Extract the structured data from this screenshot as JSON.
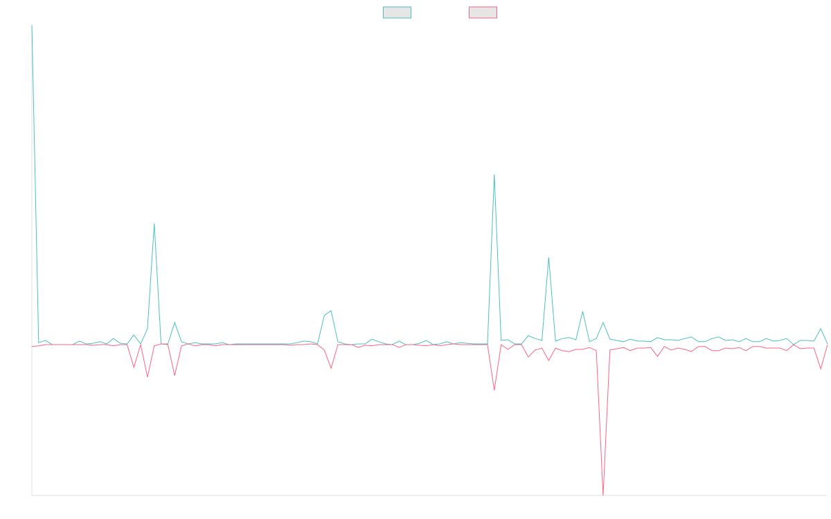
{
  "chart_data": {
    "type": "line",
    "categories": [
      null,
      null,
      null,
      null,
      null,
      null,
      null,
      null,
      null,
      null,
      null,
      null,
      null,
      null,
      null,
      null,
      null,
      null,
      null,
      null,
      null,
      null,
      null,
      null,
      null,
      null,
      null,
      null,
      null,
      null,
      null,
      null,
      null,
      null,
      null,
      null,
      null,
      null,
      null,
      null,
      null,
      null,
      null,
      null,
      null,
      null,
      null,
      null,
      null,
      null,
      null,
      null,
      null,
      null,
      null,
      null,
      null,
      null,
      null,
      null,
      null,
      null,
      null,
      null,
      null,
      null,
      null,
      null,
      null,
      null,
      null,
      null,
      null,
      null,
      null,
      null,
      null,
      null,
      null,
      null,
      null,
      null,
      null,
      null,
      null,
      null,
      null,
      null,
      null,
      null,
      null,
      null,
      null,
      null,
      null,
      null,
      null,
      null,
      null,
      null,
      null,
      null,
      null,
      null,
      null,
      null,
      null,
      null,
      null,
      null,
      null,
      null,
      null,
      null,
      null,
      null,
      null,
      null
    ],
    "series": [
      {
        "color": "#4bc0c0",
        "values": [
          100,
          0.6,
          1.3,
          0,
          0,
          0,
          0,
          1.1,
          0.2,
          0.4,
          0.9,
          0.2,
          1.9,
          0.4,
          0.2,
          3.0,
          0.2,
          5.0,
          37.9,
          0.2,
          0.2,
          6.9,
          0.9,
          0.2,
          0.6,
          0.2,
          0.2,
          0.2,
          0.6,
          0,
          0.2,
          0.2,
          0.2,
          0.2,
          0.2,
          0.2,
          0.2,
          0.2,
          0.2,
          0.6,
          1.1,
          0.9,
          0.2,
          9.1,
          10.6,
          0.9,
          0.2,
          0,
          0.2,
          0.2,
          1.7,
          0.9,
          0.2,
          0,
          1.1,
          0,
          0,
          0.4,
          1.3,
          0,
          0.2,
          0.9,
          0.2,
          0.6,
          0.4,
          0.2,
          0.2,
          0.2,
          53.2,
          1.3,
          1.5,
          0.2,
          0.2,
          2.8,
          1.9,
          1.3,
          27.3,
          1.1,
          1.9,
          2.2,
          1.5,
          10.4,
          0.9,
          1.9,
          6.9,
          1.7,
          1.3,
          0.9,
          1.7,
          1.1,
          1.1,
          0.9,
          2.2,
          1.5,
          1.5,
          1.3,
          1.9,
          2.4,
          0.9,
          0.9,
          1.9,
          2.4,
          1.3,
          1.5,
          0.9,
          1.9,
          0.9,
          0.9,
          1.9,
          1.1,
          1.3,
          1.9,
          0,
          1.3,
          1.3,
          1.1,
          5.0,
          0.2
        ]
      },
      {
        "color": "#ff6384",
        "values": [
          -0.6,
          -0.4,
          0,
          0,
          0,
          0,
          0,
          0,
          0,
          -0.2,
          0,
          0,
          -0.4,
          0,
          0,
          -7.1,
          0,
          -10.2,
          -0.4,
          0.2,
          0,
          -9.7,
          -0.4,
          0.2,
          -0.4,
          0,
          0,
          -0.4,
          0,
          0,
          0,
          0,
          0,
          0,
          0,
          0,
          0,
          0,
          -0.2,
          0,
          0,
          0.2,
          0,
          -1.7,
          -7.4,
          0,
          0,
          0,
          -0.9,
          -0.2,
          -0.4,
          0,
          0,
          0,
          -0.9,
          0,
          0,
          -0.2,
          -0.4,
          0,
          -0.4,
          0,
          0.2,
          0,
          0,
          0,
          0,
          0,
          -14.3,
          0,
          -1.5,
          0,
          0,
          -3.9,
          -1.7,
          -1.1,
          -5.0,
          -1.1,
          -1.9,
          -2.2,
          -1.5,
          -1.5,
          -0.9,
          -1.9,
          -47.2,
          -1.7,
          -1.3,
          -0.9,
          -1.9,
          -1.1,
          -1.1,
          -0.9,
          -3.7,
          -0.6,
          -1.7,
          -1.1,
          -1.5,
          -2.2,
          -0.6,
          -0.6,
          -1.9,
          -1.9,
          -1.1,
          -1.3,
          -0.9,
          -1.9,
          -0.6,
          -0.6,
          -1.1,
          -1.1,
          -1.1,
          -1.9,
          0,
          -1.3,
          -1.1,
          -1.1,
          -7.6,
          0
        ]
      }
    ],
    "ylim": [
      -47.2,
      100
    ],
    "legend": "top"
  }
}
